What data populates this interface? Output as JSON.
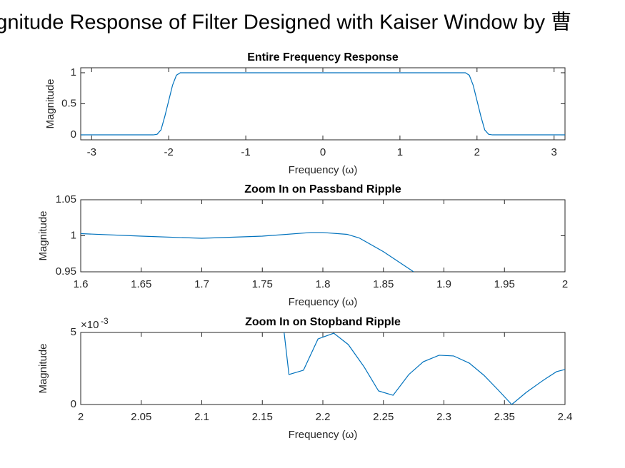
{
  "suptitle": "Magnitude Response of Filter Designed with Kaiser Window by 曹",
  "chart_data": [
    {
      "type": "line",
      "title": "Entire Frequency Response",
      "xlabel": "Frequency (ω)",
      "ylabel": "Magnitude",
      "xlim": [
        -3.1416,
        3.1416
      ],
      "xticks": [
        -3,
        -2,
        -1,
        0,
        1,
        2,
        3
      ],
      "ylim": [
        -0.08,
        1.08
      ],
      "yticks": [
        0,
        0.5,
        1
      ],
      "series": [
        {
          "color": "#0072bd",
          "x": [
            -3.1416,
            -2.2,
            -2.15,
            -2.1,
            -2.05,
            -2.0,
            -1.95,
            -1.9,
            -1.85,
            1.85,
            1.9,
            1.95,
            2.0,
            2.05,
            2.1,
            2.15,
            2.2,
            3.1416
          ],
          "values": [
            0,
            0,
            0.01,
            0.08,
            0.3,
            0.55,
            0.8,
            0.96,
            1,
            1,
            0.96,
            0.8,
            0.55,
            0.3,
            0.08,
            0.01,
            0,
            0
          ]
        }
      ]
    },
    {
      "type": "line",
      "title": "Zoom In on Passband Ripple",
      "xlabel": "Frequency (ω)",
      "ylabel": "Magnitude",
      "xlim": [
        1.6,
        2
      ],
      "xticks": [
        1.6,
        1.65,
        1.7,
        1.75,
        1.8,
        1.85,
        1.9,
        1.95,
        2
      ],
      "ylim": [
        0.95,
        1.05
      ],
      "yticks": [
        0.95,
        1,
        1.05
      ],
      "series": [
        {
          "color": "#0072bd",
          "x": [
            1.6,
            1.65,
            1.7,
            1.75,
            1.79,
            1.8,
            1.82,
            1.83,
            1.85,
            1.875
          ],
          "values": [
            1.003,
            0.9995,
            0.9965,
            0.9995,
            1.0045,
            1.0045,
            1.002,
            0.997,
            0.978,
            0.95
          ]
        }
      ]
    },
    {
      "type": "line",
      "title": "Zoom In on Stopband Ripple",
      "xlabel": "Frequency (ω)",
      "ylabel": "Magnitude",
      "y_exponent_base": "×10",
      "y_exponent_power": "-3",
      "xlim": [
        2,
        2.4
      ],
      "xticks": [
        2,
        2.05,
        2.1,
        2.15,
        2.2,
        2.25,
        2.3,
        2.35,
        2.4
      ],
      "ylim": [
        0,
        0.005
      ],
      "yticks": [
        0,
        {
          "value": 0.005,
          "label": "5"
        }
      ],
      "series": [
        {
          "color": "#0072bd",
          "x": [
            2.168,
            2.172,
            2.184,
            2.196,
            2.209,
            2.221,
            2.234,
            2.246,
            2.258,
            2.271,
            2.283,
            2.296,
            2.308,
            2.321,
            2.333,
            2.345,
            2.356,
            2.368,
            2.382,
            2.393,
            2.4
          ],
          "values": [
            0.005,
            0.00208,
            0.00238,
            0.00455,
            0.00495,
            0.00416,
            0.00262,
            0.00094,
            0.00064,
            0.00208,
            0.00297,
            0.00342,
            0.00337,
            0.00287,
            0.00203,
            0.00099,
            0,
            0.00084,
            0.00168,
            0.00228,
            0.00243
          ]
        }
      ]
    }
  ]
}
